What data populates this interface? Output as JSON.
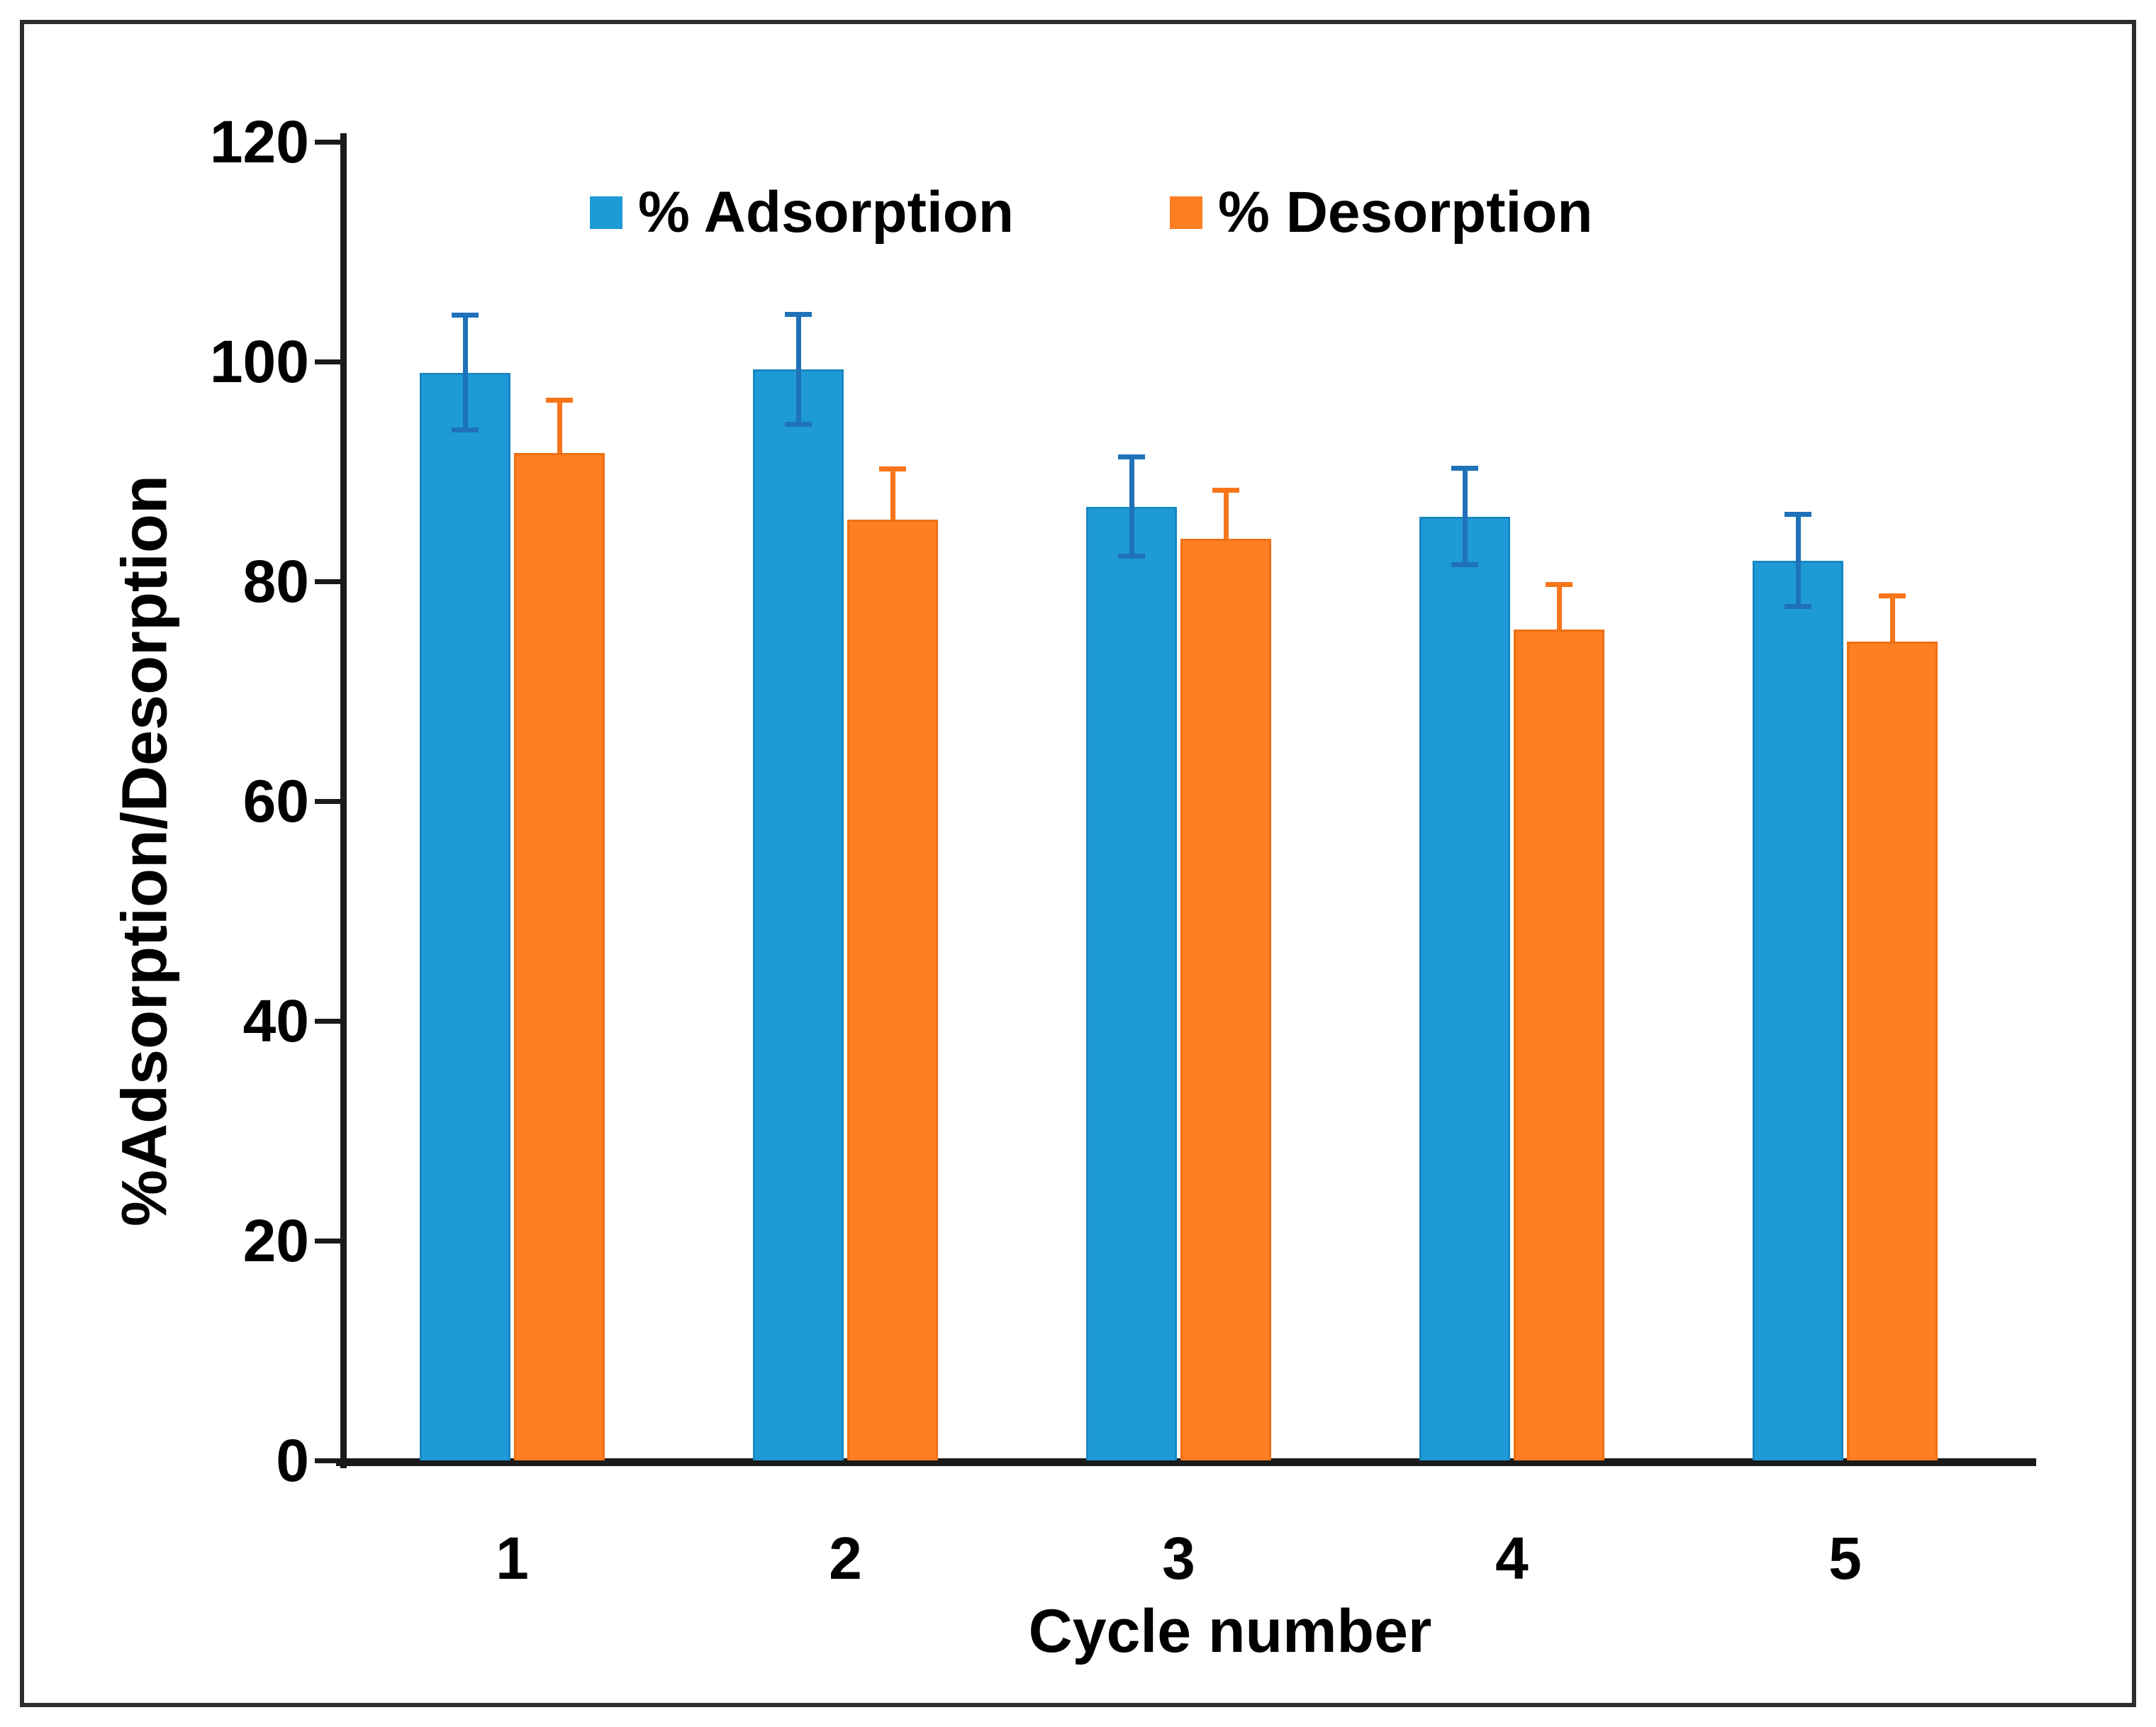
{
  "chart_data": {
    "type": "bar",
    "title": "",
    "categories": [
      "1",
      "2",
      "3",
      "4",
      "5"
    ],
    "series": [
      {
        "name": "% Adsorption",
        "color": "#1E9AD7",
        "border_color": "#1787C0",
        "error_color": "#1F72B8",
        "error_direction": "both",
        "values": [
          99.0,
          99.3,
          86.8,
          85.9,
          81.9
        ],
        "errors": [
          5.2,
          5.0,
          4.5,
          4.4,
          4.2
        ]
      },
      {
        "name": "% Desorption",
        "color": "#FD7E23",
        "border_color": "#EF6F12",
        "error_color": "#F8751A",
        "error_direction": "plus",
        "values": [
          91.7,
          85.6,
          83.9,
          75.6,
          74.5
        ],
        "errors": [
          4.8,
          4.6,
          4.4,
          4.1,
          4.2
        ]
      }
    ],
    "xlabel": "Cycle number",
    "ylabel": "%Adsorption/Desorption",
    "ylim": [
      0,
      120
    ],
    "yticks": [
      0,
      20,
      40,
      60,
      80,
      100,
      120
    ],
    "grid": false,
    "legend_position": "top"
  },
  "colors": {
    "axis": "#1a1a1a",
    "frame_border": "#2d2d2d",
    "text": "#000000",
    "background": "#ffffff"
  }
}
